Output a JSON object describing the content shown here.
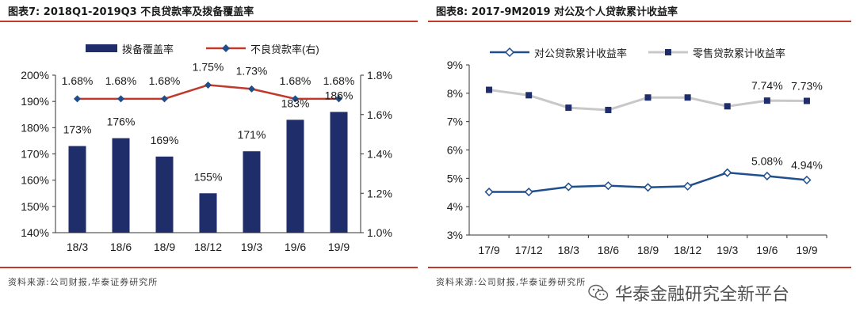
{
  "left": {
    "title": "图表7:  2018Q1-2019Q3 不良贷款率及拨备覆盖率",
    "source": "资料来源:公司财报,华泰证券研究所",
    "legend_bar": "拨备覆盖率",
    "legend_line": "不良贷款率(右)"
  },
  "right": {
    "title": "图表8:  2017-9M2019 对公及个人贷款累计收益率",
    "source": "资料来源:公司财报,华泰证券研究所",
    "legend_series1": "对公贷款累计收益率",
    "legend_series2": "零售贷款累计收益率"
  },
  "watermark": {
    "text": "华泰金融研究全新平台",
    "icon": "wechat-icon"
  },
  "colors": {
    "bar": "#1f2d6b",
    "line_red": "#c0392b",
    "line_blue": "#1f4e8c",
    "line_gray": "#c8c8c8",
    "marker_dark": "#1f2d6b",
    "rule": "#c0392b"
  },
  "chart_data": [
    {
      "type": "bar",
      "categories": [
        "18/3",
        "18/6",
        "18/9",
        "18/12",
        "19/3",
        "19/6",
        "19/9"
      ],
      "series": [
        {
          "name": "拨备覆盖率",
          "axis": "left",
          "values": [
            173,
            176,
            169,
            155,
            171,
            183,
            186
          ],
          "labels": [
            "173%",
            "176%",
            "169%",
            "155%",
            "171%",
            "183%",
            "186%"
          ]
        },
        {
          "name": "不良贷款率(右)",
          "axis": "right",
          "kind": "line",
          "values": [
            1.68,
            1.68,
            1.68,
            1.75,
            1.73,
            1.68,
            1.68
          ],
          "labels": [
            "1.68%",
            "1.68%",
            "1.68%",
            "1.75%",
            "1.73%",
            "1.68%",
            "1.68%"
          ]
        }
      ],
      "ylim": [
        140,
        200
      ],
      "yticks": [
        "140%",
        "150%",
        "160%",
        "170%",
        "180%",
        "190%",
        "200%"
      ],
      "y2lim": [
        1.0,
        1.8
      ],
      "y2ticks": [
        "1.0%",
        "1.2%",
        "1.4%",
        "1.6%",
        "1.8%"
      ],
      "legend": "top"
    },
    {
      "type": "line",
      "categories": [
        "17/9",
        "17/12",
        "18/3",
        "18/6",
        "18/9",
        "18/12",
        "19/3",
        "19/6",
        "19/9"
      ],
      "series": [
        {
          "name": "对公贷款累计收益率",
          "values": [
            4.52,
            4.52,
            4.7,
            4.74,
            4.68,
            4.72,
            5.2,
            5.08,
            4.94
          ],
          "labels": {
            "7": "5.08%",
            "8": "4.94%"
          }
        },
        {
          "name": "零售贷款累计收益率",
          "values": [
            8.12,
            7.93,
            7.49,
            7.41,
            7.85,
            7.85,
            7.54,
            7.74,
            7.73
          ],
          "labels": {
            "7": "7.74%",
            "8": "7.73%"
          }
        }
      ],
      "ylim": [
        3,
        9
      ],
      "yticks": [
        "3%",
        "4%",
        "5%",
        "6%",
        "7%",
        "8%",
        "9%"
      ],
      "legend": "top"
    }
  ]
}
